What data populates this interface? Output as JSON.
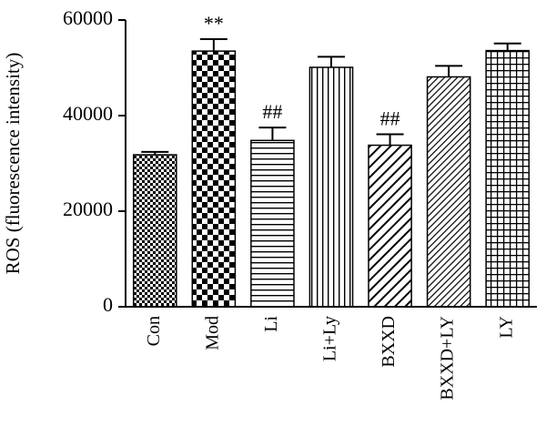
{
  "chart_data": {
    "type": "bar",
    "ylabel": "ROS (fluorescence intensity)",
    "ylim": [
      0,
      60000
    ],
    "yticks": [
      0,
      20000,
      40000,
      60000
    ],
    "categories": [
      "Con",
      "Mod",
      "Li",
      "Li+Ly",
      "BXXD",
      "BXXD+LY",
      "LY"
    ],
    "values": [
      31800,
      53500,
      34800,
      50100,
      33800,
      48100,
      53600
    ],
    "errors": [
      600,
      2500,
      2700,
      2200,
      2300,
      2300,
      1500
    ],
    "annotations": [
      "",
      "**",
      "##",
      "",
      "##",
      "",
      ""
    ],
    "patterns": [
      "fine-checker",
      "coarse-checker",
      "horizontal-lines",
      "vertical-lines",
      "diagonal-lines",
      "dense-diagonal-lines",
      "grid"
    ],
    "grid": false,
    "colors": {
      "bar_stroke": "#000000",
      "bar_fill": "#000000",
      "background": "#ffffff"
    }
  }
}
